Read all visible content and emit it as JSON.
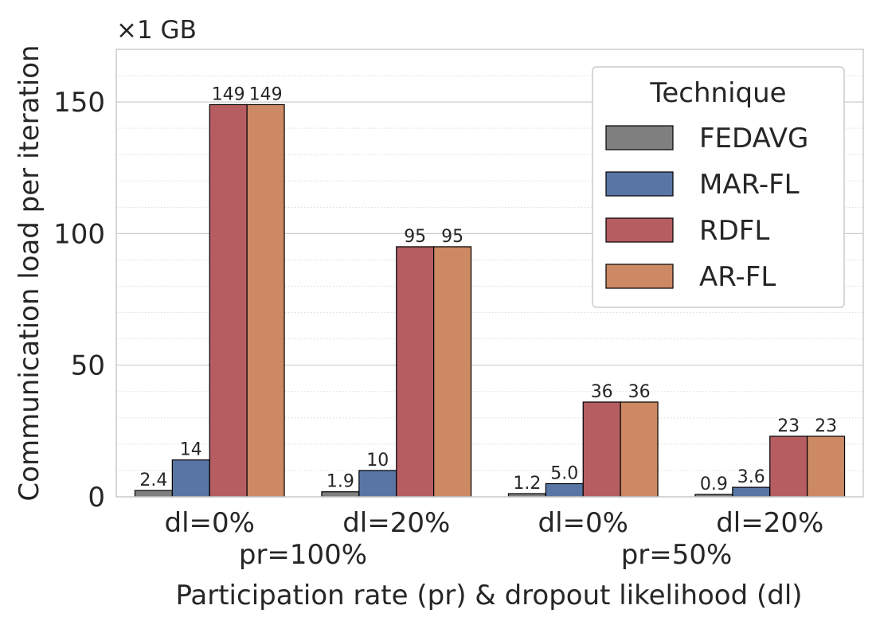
{
  "chart_data": {
    "type": "bar",
    "title": "",
    "scale_label": "×1 GB",
    "ylabel": "Communication load per iteration",
    "xlabel": "Participation rate (pr) & dropout likelihood (dl)",
    "ylim": [
      0,
      170
    ],
    "yticks": [
      0,
      50,
      100,
      150
    ],
    "minor_step": 10,
    "categories": [
      "dl=0%",
      "dl=20%",
      "dl=0%",
      "dl=20%"
    ],
    "groups": [
      {
        "label": "pr=100%",
        "categories": [
          0,
          1
        ]
      },
      {
        "label": "pr=50%",
        "categories": [
          2,
          3
        ]
      }
    ],
    "series": [
      {
        "name": "FEDAVG",
        "color": "#7f7f7f",
        "values": [
          2.4,
          1.9,
          1.2,
          0.9
        ],
        "labels": [
          "2.4",
          "1.9",
          "1.2",
          "0.9"
        ]
      },
      {
        "name": "MAR-FL",
        "color": "#5875a4",
        "values": [
          14,
          10,
          5.0,
          3.6
        ],
        "labels": [
          "14",
          "10",
          "5.0",
          "3.6"
        ]
      },
      {
        "name": "RDFL",
        "color": "#b55d60",
        "values": [
          149,
          95,
          36,
          23
        ],
        "labels": [
          "149",
          "95",
          "36",
          "23"
        ]
      },
      {
        "name": "AR-FL",
        "color": "#cc8963",
        "values": [
          149,
          95,
          36,
          23
        ],
        "labels": [
          "149",
          "95",
          "36",
          "23"
        ]
      }
    ],
    "legend": {
      "title": "Technique",
      "position": "top-right"
    },
    "grid": true
  }
}
